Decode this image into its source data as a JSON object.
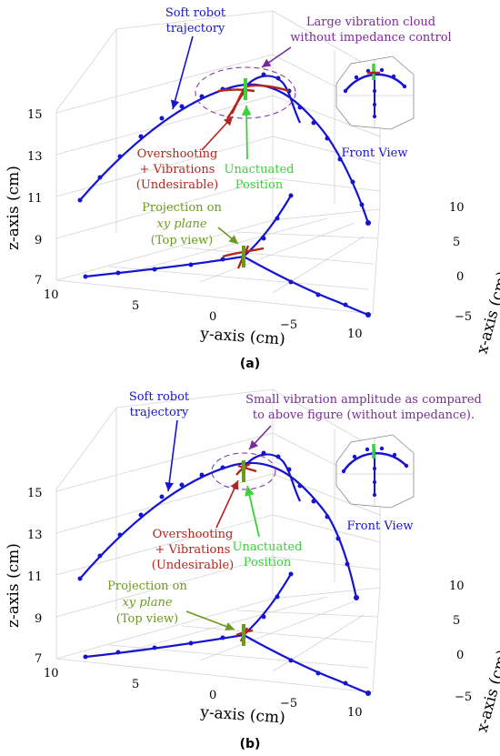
{
  "panels": [
    {
      "id": "a",
      "caption": "(a)",
      "axes": {
        "z_label": "z-axis (cm)",
        "y_label": "y-axis (cm)",
        "x_label": "x-axis (cm)",
        "z_ticks": [
          "15",
          "13",
          "11",
          "9",
          "7"
        ],
        "y_ticks": [
          "10",
          "5",
          "0",
          "−5",
          "10"
        ],
        "x_ticks": [
          "10",
          "5",
          "0",
          "−5"
        ]
      },
      "annotations": {
        "trajectory_line1": "Soft robot",
        "trajectory_line2": "trajectory",
        "cloud_line1": "Large vibration cloud",
        "cloud_line2": "without impedance control",
        "overshoot_line1": "Overshooting",
        "overshoot_line2": "+ Vibrations",
        "overshoot_line3": "(Undesirable)",
        "unactuated_line1": "Unactuated",
        "unactuated_line2": "Position",
        "projection_line1": "Projection on",
        "projection_line2": "xy plane",
        "projection_line3": "(Top view)",
        "front_view": "Front View"
      }
    },
    {
      "id": "b",
      "caption": "(b)",
      "axes": {
        "z_label": "z-axis (cm)",
        "y_label": "y-axis (cm)",
        "x_label": "x-axis (cm)",
        "z_ticks": [
          "15",
          "13",
          "11",
          "9",
          "7"
        ],
        "y_ticks": [
          "10",
          "5",
          "0",
          "−5",
          "10"
        ],
        "x_ticks": [
          "10",
          "5",
          "0",
          "−5"
        ]
      },
      "annotations": {
        "trajectory_line1": "Soft robot",
        "trajectory_line2": "trajectory",
        "cloud_line1": "Small vibration amplitude as compared",
        "cloud_line2": "to above figure (without impedance).",
        "overshoot_line1": "Overshooting",
        "overshoot_line2": "+ Vibrations",
        "overshoot_line3": "(Undesirable)",
        "unactuated_line1": "Unactuated",
        "unactuated_line2": "Position",
        "projection_line1": "Projection on",
        "projection_line2": "xy plane",
        "projection_line3": "(Top view)",
        "front_view": "Front View"
      }
    }
  ],
  "colors": {
    "trajectory": "#1414d2",
    "vibration": "#b3261e",
    "unactuated": "#3ad13a",
    "projection_label": "#6b9a1e",
    "cloud_label": "#7a2a9a",
    "grid": "#d0d0d0",
    "text": "#000000"
  }
}
